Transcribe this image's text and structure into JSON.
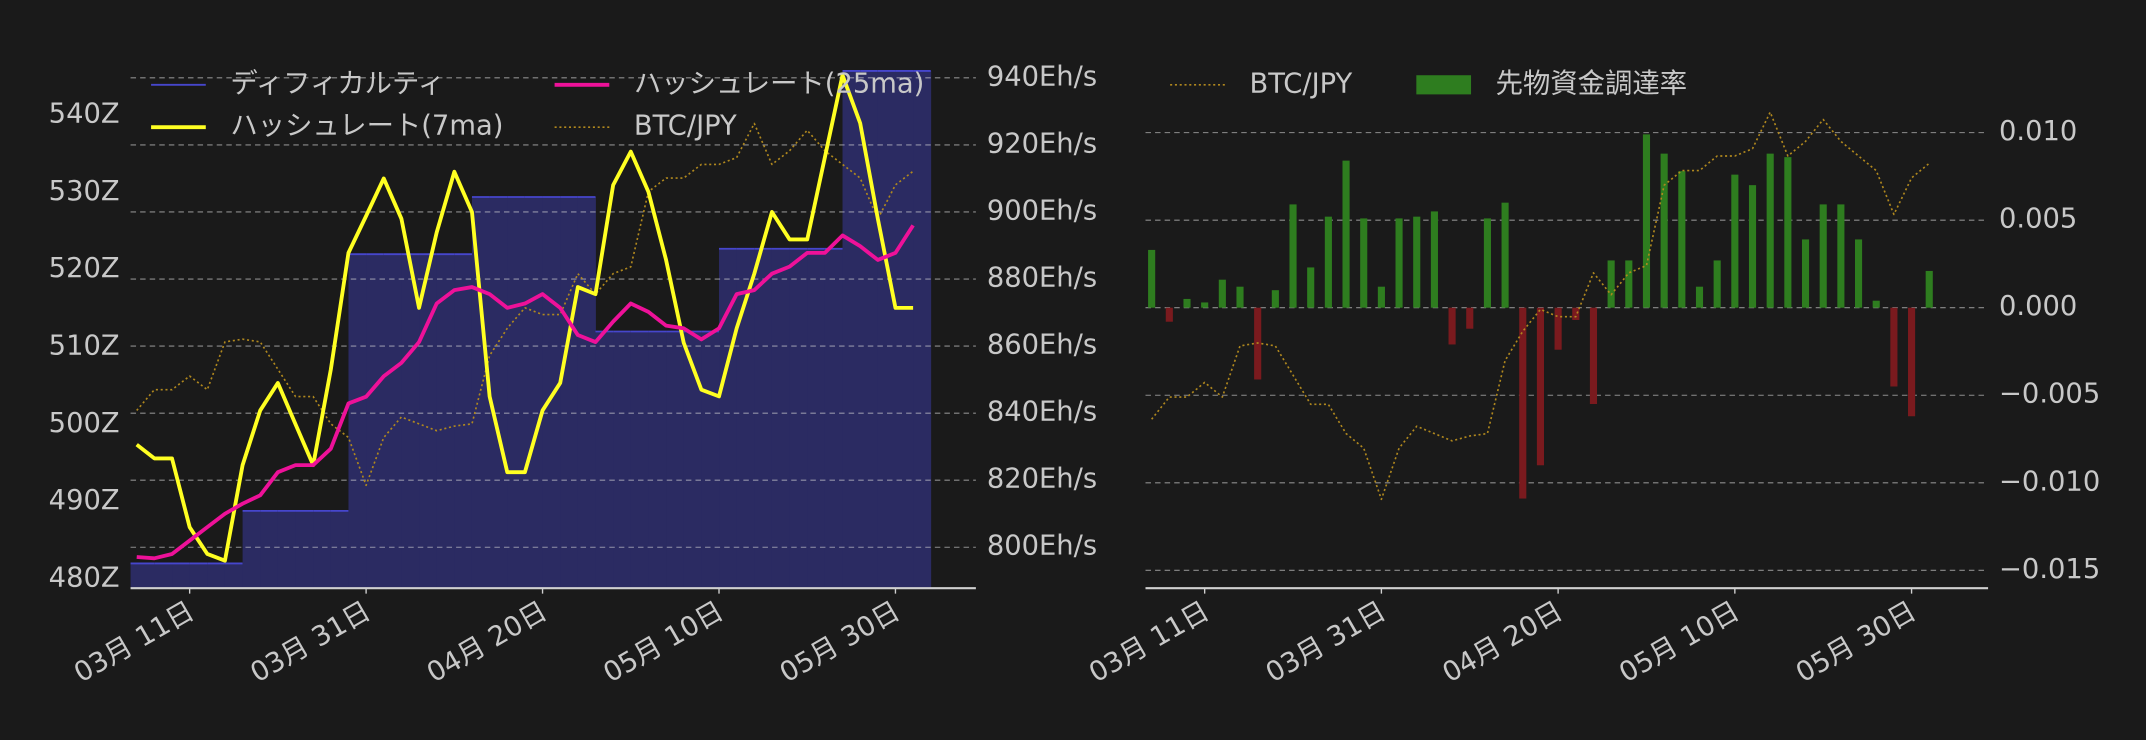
{
  "chart_data": [
    {
      "type": "combo",
      "x": [
        "03-05",
        "03-07",
        "03-09",
        "03-11",
        "03-13",
        "03-15",
        "03-17",
        "03-19",
        "03-21",
        "03-23",
        "03-25",
        "03-27",
        "03-29",
        "03-31",
        "04-02",
        "04-04",
        "04-06",
        "04-08",
        "04-10",
        "04-12",
        "04-14",
        "04-16",
        "04-18",
        "04-20",
        "04-22",
        "04-24",
        "04-26",
        "04-28",
        "04-30",
        "05-02",
        "05-04",
        "05-06",
        "05-08",
        "05-10",
        "05-12",
        "05-14",
        "05-16",
        "05-18",
        "05-20",
        "05-22",
        "05-24",
        "05-26",
        "05-28",
        "05-30",
        "06-01"
      ],
      "xticks": [
        {
          "value": "03-11",
          "label": "03月 11日"
        },
        {
          "value": "03-31",
          "label": "03月 31日"
        },
        {
          "value": "04-20",
          "label": "04月 20日"
        },
        {
          "value": "05-10",
          "label": "05月 10日"
        },
        {
          "value": "05-30",
          "label": "05月 30日"
        }
      ],
      "ylim": [
        478.8,
        547.8
      ],
      "yticks": [
        {
          "value": 480,
          "label": "480Z"
        },
        {
          "value": 490,
          "label": "490Z"
        },
        {
          "value": 500,
          "label": "500Z"
        },
        {
          "value": 510,
          "label": "510Z"
        },
        {
          "value": 520,
          "label": "520Z"
        },
        {
          "value": 530,
          "label": "530Z"
        },
        {
          "value": 540,
          "label": "540Z"
        }
      ],
      "y2lim": [
        787.8,
        946.9
      ],
      "y2ticks": [
        {
          "value": 800,
          "label": "800Eh/s"
        },
        {
          "value": 820,
          "label": "820Eh/s"
        },
        {
          "value": 840,
          "label": "840Eh/s"
        },
        {
          "value": 860,
          "label": "860Eh/s"
        },
        {
          "value": 880,
          "label": "880Eh/s"
        },
        {
          "value": 900,
          "label": "900Eh/s"
        },
        {
          "value": 920,
          "label": "920Eh/s"
        },
        {
          "value": 940,
          "label": "940Eh/s"
        }
      ],
      "y3lim": [
        8558000,
        10902000
      ],
      "grid": true,
      "grid_axis": "y2",
      "legend": "upper left",
      "legend_columns": 2,
      "series": [
        {
          "name": "ディフィカルティ",
          "type": "step-area",
          "color": "#4646cc",
          "fill": "#2b2b62",
          "axis": "y",
          "values": [
            482,
            482,
            482,
            482,
            482,
            482,
            488.8,
            488.8,
            488.8,
            488.8,
            488.8,
            488.8,
            522,
            522,
            522,
            522,
            522,
            522,
            522,
            529.4,
            529.4,
            529.4,
            529.4,
            529.4,
            529.4,
            529.4,
            512,
            512,
            512,
            512,
            512,
            512,
            512,
            522.7,
            522.7,
            522.7,
            522.7,
            522.7,
            522.7,
            522.7,
            545.7,
            545.7,
            545.7,
            545.7,
            545.7
          ]
        },
        {
          "name": "ハッシュレート(7ma)",
          "type": "line",
          "color": "#ffff22",
          "axis": "y2",
          "values": [
            830.6,
            826.5,
            826.5,
            806,
            798,
            796,
            824.5,
            840.8,
            849,
            836.7,
            824.5,
            853,
            887.8,
            898.8,
            910,
            898,
            871.4,
            893.9,
            912,
            900,
            845,
            822.4,
            822.4,
            840.8,
            849,
            877.6,
            875.5,
            908,
            918,
            906,
            885.7,
            861,
            847,
            845,
            865.3,
            881.6,
            900,
            891.8,
            891.8,
            916.3,
            940.8,
            926.5,
            898,
            871.4,
            871.4
          ]
        },
        {
          "name": "ハッシュレート(25ma)",
          "type": "line",
          "color": "#ee1199",
          "axis": "y2",
          "values": [
            797.1,
            796.7,
            798,
            802,
            806,
            810,
            813,
            815.5,
            822.4,
            824.5,
            824.5,
            829.4,
            842.9,
            844.9,
            851,
            855,
            861.2,
            872.7,
            876.7,
            877.6,
            875.5,
            871.4,
            872.7,
            875.5,
            871.4,
            863.3,
            861.2,
            867.3,
            872.7,
            870.2,
            866.1,
            865.3,
            862,
            865.3,
            875.5,
            876.7,
            881.6,
            883.7,
            887.8,
            887.8,
            893,
            889.8,
            885.7,
            887.8,
            896
          ]
        },
        {
          "name": "BTC/JPY",
          "type": "line",
          "linestyle": "dotted",
          "color": "#b0881e",
          "axis": "y3",
          "values": [
            9339000,
            9430000,
            9430000,
            9490000,
            9430000,
            9640000,
            9652000,
            9640000,
            9520000,
            9400000,
            9400000,
            9280000,
            9220000,
            9010000,
            9220000,
            9310000,
            9280000,
            9250000,
            9270000,
            9280000,
            9580000,
            9700000,
            9790000,
            9760000,
            9760000,
            9940000,
            9850000,
            9940000,
            9970000,
            10300000,
            10360000,
            10360000,
            10420000,
            10420000,
            10450000,
            10600000,
            10420000,
            10480000,
            10570000,
            10480000,
            10420000,
            10360000,
            10180000,
            10330000,
            10390000
          ]
        }
      ]
    },
    {
      "type": "combo",
      "x": [
        "03-05",
        "03-07",
        "03-09",
        "03-11",
        "03-13",
        "03-15",
        "03-17",
        "03-19",
        "03-21",
        "03-23",
        "03-25",
        "03-27",
        "03-29",
        "03-31",
        "04-02",
        "04-04",
        "04-06",
        "04-08",
        "04-10",
        "04-12",
        "04-14",
        "04-16",
        "04-18",
        "04-20",
        "04-22",
        "04-24",
        "04-26",
        "04-28",
        "04-30",
        "05-02",
        "05-04",
        "05-06",
        "05-08",
        "05-10",
        "05-12",
        "05-14",
        "05-16",
        "05-18",
        "05-20",
        "05-22",
        "05-24",
        "05-26",
        "05-28",
        "05-30",
        "06-01"
      ],
      "xticks": [
        {
          "value": "03-11",
          "label": "03月 11日"
        },
        {
          "value": "03-31",
          "label": "03月 31日"
        },
        {
          "value": "04-20",
          "label": "04月 20日"
        },
        {
          "value": "05-10",
          "label": "05月 10日"
        },
        {
          "value": "05-30",
          "label": "05月 30日"
        }
      ],
      "ylim": [
        -0.01602,
        0.01445
      ],
      "yticks": [
        {
          "value": -0.015,
          "label": "−0.015"
        },
        {
          "value": -0.01,
          "label": "−0.010"
        },
        {
          "value": -0.005,
          "label": "−0.005"
        },
        {
          "value": 0,
          "label": "0.000"
        },
        {
          "value": 0.005,
          "label": "0.005"
        },
        {
          "value": 0.01,
          "label": "0.010"
        }
      ],
      "yaxis_side": "right",
      "y3lim": [
        8645000,
        10836000
      ],
      "grid": true,
      "grid_axis": "y",
      "legend": "upper left",
      "legend_columns": 2,
      "series": [
        {
          "name": "BTC/JPY",
          "type": "line",
          "linestyle": "dotted",
          "color": "#b0881e",
          "axis": "y3",
          "values": [
            9339000,
            9430000,
            9430000,
            9490000,
            9430000,
            9640000,
            9652000,
            9640000,
            9520000,
            9400000,
            9400000,
            9280000,
            9220000,
            9010000,
            9220000,
            9310000,
            9280000,
            9250000,
            9270000,
            9280000,
            9580000,
            9700000,
            9790000,
            9760000,
            9760000,
            9940000,
            9850000,
            9940000,
            9970000,
            10300000,
            10360000,
            10360000,
            10420000,
            10420000,
            10450000,
            10600000,
            10420000,
            10480000,
            10570000,
            10480000,
            10420000,
            10360000,
            10180000,
            10330000,
            10390000
          ]
        },
        {
          "name": "先物資金調達率",
          "type": "bar",
          "color": "#2e7d1f",
          "negative_color": "#7a1a1e",
          "axis": "y",
          "values": [
            0.0033,
            -0.0008,
            0.0005,
            0.0003,
            0.0016,
            0.0012,
            -0.0041,
            0.001,
            0.0059,
            0.0023,
            0.0052,
            0.0084,
            0.0051,
            0.0012,
            0.0051,
            0.0052,
            0.0055,
            -0.0021,
            -0.0012,
            0.0051,
            0.006,
            -0.0109,
            -0.009,
            -0.0024,
            -0.0007,
            -0.0055,
            0.0027,
            0.0027,
            0.0099,
            0.0088,
            0.0078,
            0.0012,
            0.0027,
            0.0076,
            0.007,
            0.0088,
            0.0086,
            0.0039,
            0.0059,
            0.0059,
            0.0039,
            0.0004,
            -0.0045,
            -0.0062,
            0.0021
          ]
        }
      ]
    }
  ]
}
